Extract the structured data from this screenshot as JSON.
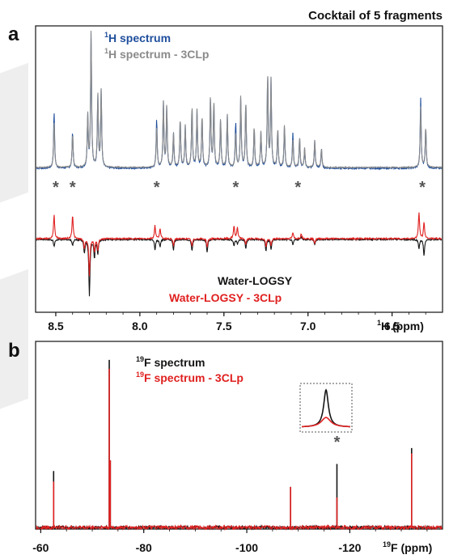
{
  "figure_title": "Cocktail of 5 fragments",
  "colors": {
    "blue": "#1f4e9c",
    "gray": "#8a8a8a",
    "black": "#151515",
    "red": "#e02020"
  },
  "chart_data": [
    {
      "panel_label": "a",
      "type": "line",
      "x_unit_prefix": "1",
      "x_unit_label": "H (ppm)",
      "xlim": [
        8.62,
        6.2
      ],
      "xticks": [
        "8.5",
        "8.0",
        "7.5",
        "7.0",
        "6.5"
      ],
      "grid": false,
      "legend": "top-left",
      "series": [
        {
          "name_sup": "1",
          "name": "H spectrum",
          "color": "blue"
        },
        {
          "name_sup": "1",
          "name": "H spectrum - 3CLp",
          "color": "gray"
        },
        {
          "name": "Water-LOGSY",
          "color": "black"
        },
        {
          "name": "Water-LOGSY - 3CLp",
          "color": "red"
        }
      ],
      "peaks_1h": [
        {
          "x": 8.51,
          "h": 0.34,
          "blue": 0.42
        },
        {
          "x": 8.4,
          "h": 0.25,
          "blue": 0.27
        },
        {
          "x": 8.31,
          "h": 0.38
        },
        {
          "x": 8.29,
          "h": 1.0
        },
        {
          "x": 8.25,
          "h": 0.53
        },
        {
          "x": 8.23,
          "h": 0.57
        },
        {
          "x": 7.9,
          "h": 0.3,
          "blue": 0.36
        },
        {
          "x": 7.86,
          "h": 0.48
        },
        {
          "x": 7.84,
          "h": 0.45
        },
        {
          "x": 7.8,
          "h": 0.25
        },
        {
          "x": 7.76,
          "h": 0.36
        },
        {
          "x": 7.73,
          "h": 0.31
        },
        {
          "x": 7.69,
          "h": 0.45
        },
        {
          "x": 7.66,
          "h": 0.42
        },
        {
          "x": 7.63,
          "h": 0.38
        },
        {
          "x": 7.58,
          "h": 0.52
        },
        {
          "x": 7.56,
          "h": 0.48
        },
        {
          "x": 7.52,
          "h": 0.36
        },
        {
          "x": 7.48,
          "h": 0.39
        },
        {
          "x": 7.43,
          "h": 0.25,
          "blue": 0.33
        },
        {
          "x": 7.4,
          "h": 0.52
        },
        {
          "x": 7.37,
          "h": 0.48
        },
        {
          "x": 7.32,
          "h": 0.3
        },
        {
          "x": 7.28,
          "h": 0.26
        },
        {
          "x": 7.24,
          "h": 0.68
        },
        {
          "x": 7.22,
          "h": 0.64
        },
        {
          "x": 7.18,
          "h": 0.28
        },
        {
          "x": 7.14,
          "h": 0.31
        },
        {
          "x": 7.09,
          "h": 0.2,
          "blue": 0.26
        },
        {
          "x": 7.05,
          "h": 0.22
        },
        {
          "x": 7.02,
          "h": 0.14
        },
        {
          "x": 6.96,
          "h": 0.2
        },
        {
          "x": 6.92,
          "h": 0.14
        },
        {
          "x": 6.33,
          "h": 0.44,
          "blue": 0.51
        },
        {
          "x": 6.3,
          "h": 0.3
        }
      ],
      "peaks_logsy": [
        {
          "x": 8.51,
          "black": -0.1,
          "red": 0.33
        },
        {
          "x": 8.4,
          "black": -0.08,
          "red": 0.33
        },
        {
          "x": 8.33,
          "black": -0.18,
          "red": -0.14
        },
        {
          "x": 8.3,
          "black": -0.78,
          "red": -0.5
        },
        {
          "x": 8.27,
          "black": -0.24,
          "red": -0.18
        },
        {
          "x": 8.25,
          "black": -0.2,
          "red": -0.16
        },
        {
          "x": 7.91,
          "black": -0.14,
          "red": 0.18
        },
        {
          "x": 7.88,
          "black": -0.1,
          "red": 0.14
        },
        {
          "x": 7.8,
          "black": -0.14,
          "red": -0.1
        },
        {
          "x": 7.69,
          "black": -0.16,
          "red": -0.11
        },
        {
          "x": 7.6,
          "black": -0.18,
          "red": -0.12
        },
        {
          "x": 7.44,
          "black": -0.08,
          "red": 0.18
        },
        {
          "x": 7.42,
          "black": -0.06,
          "red": 0.15
        },
        {
          "x": 7.37,
          "black": -0.12,
          "red": -0.08
        },
        {
          "x": 7.25,
          "black": -0.16,
          "red": -0.11
        },
        {
          "x": 7.22,
          "black": -0.14,
          "red": -0.1
        },
        {
          "x": 7.09,
          "black": -0.08,
          "red": 0.08
        },
        {
          "x": 7.04,
          "black": 0.04,
          "red": 0.07
        },
        {
          "x": 6.96,
          "black": -0.08,
          "red": -0.06
        },
        {
          "x": 6.34,
          "black": -0.12,
          "red": 0.36
        },
        {
          "x": 6.31,
          "black": -0.22,
          "red": 0.22
        }
      ],
      "binding_markers": [
        "8.5",
        "8.4",
        "7.9",
        "7.43",
        "7.06",
        "6.32"
      ]
    },
    {
      "panel_label": "b",
      "type": "line",
      "x_unit_prefix": "19",
      "x_unit_label": "F (ppm)",
      "xlim": [
        -59,
        -138
      ],
      "xticks": [
        "-60",
        "-80",
        "-100",
        "-120"
      ],
      "grid": false,
      "legend": "top-center",
      "series": [
        {
          "name_sup": "19",
          "name": "F spectrum",
          "color": "black"
        },
        {
          "name_sup": "19",
          "name": "F spectrum - 3CLp",
          "color": "red"
        }
      ],
      "peaks_19f": [
        {
          "x": -62.5,
          "black": 0.32,
          "red": 0.26
        },
        {
          "x": -73.3,
          "black": 0.95,
          "red": 0.9
        },
        {
          "x": -73.5,
          "black": 0.38,
          "red": 0.38
        },
        {
          "x": -108.5,
          "black": 0.23,
          "red": 0.23
        },
        {
          "x": -117.5,
          "black": 0.36,
          "red": 0.17
        },
        {
          "x": -132.0,
          "black": 0.45,
          "red": 0.42
        }
      ],
      "binding_markers": [
        "-117.5"
      ]
    }
  ]
}
